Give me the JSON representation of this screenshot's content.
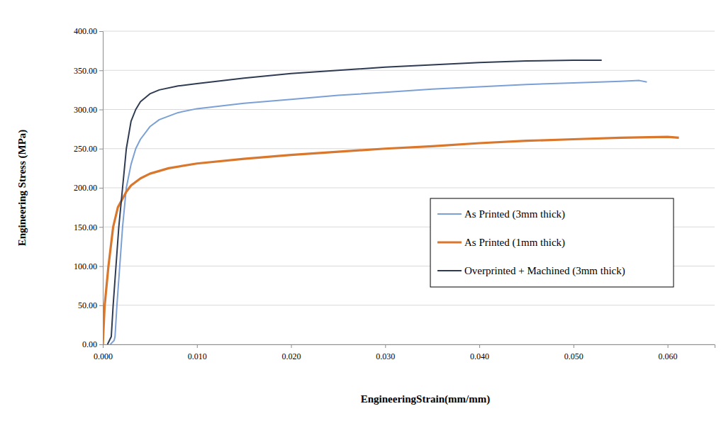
{
  "chart_data": {
    "type": "line",
    "x_label": "EngineeringStrain(mm/mm)",
    "y_label": "Engineering Stress (MPa)",
    "xlim": [
      0,
      0.065
    ],
    "ylim": [
      0,
      400
    ],
    "xticks": [
      {
        "value": 0,
        "label": "0.000"
      },
      {
        "value": 0.01,
        "label": "0.010"
      },
      {
        "value": 0.02,
        "label": "0.020"
      },
      {
        "value": 0.03,
        "label": "0.030"
      },
      {
        "value": 0.04,
        "label": "0.040"
      },
      {
        "value": 0.05,
        "label": "0.050"
      },
      {
        "value": 0.06,
        "label": "0.060"
      }
    ],
    "yticks": [
      {
        "value": 0,
        "label": "0.00"
      },
      {
        "value": 50,
        "label": "50.00"
      },
      {
        "value": 100,
        "label": "100.00"
      },
      {
        "value": 150,
        "label": "150.00"
      },
      {
        "value": 200,
        "label": "200.00"
      },
      {
        "value": 250,
        "label": "250.00"
      },
      {
        "value": 300,
        "label": "300.00"
      },
      {
        "value": 350,
        "label": "350.00"
      },
      {
        "value": 400,
        "label": "400.00"
      }
    ],
    "grid": true,
    "legend": "right",
    "series": [
      {
        "name": "As Printed (3mm thick)",
        "color": "#7ba0d6",
        "x": [
          0.0008,
          0.0012,
          0.0013,
          0.0015,
          0.0018,
          0.0021,
          0.0025,
          0.003,
          0.0035,
          0.004,
          0.005,
          0.006,
          0.008,
          0.01,
          0.015,
          0.02,
          0.025,
          0.03,
          0.035,
          0.04,
          0.045,
          0.05,
          0.055,
          0.057,
          0.0578
        ],
        "values": [
          0,
          5,
          10,
          50,
          100,
          150,
          200,
          230,
          250,
          262,
          278,
          287,
          296,
          301,
          308,
          313,
          318,
          322,
          326,
          329,
          332,
          334,
          336,
          337,
          335
        ]
      },
      {
        "name": "As Printed (1mm thick)",
        "color": "#d9782d",
        "x": [
          0,
          0.0002,
          0.0006,
          0.0011,
          0.0016,
          0.0025,
          0.003,
          0.004,
          0.005,
          0.007,
          0.01,
          0.015,
          0.02,
          0.025,
          0.03,
          0.035,
          0.04,
          0.045,
          0.05,
          0.055,
          0.06,
          0.0612
        ],
        "values": [
          0,
          50,
          100,
          150,
          175,
          195,
          203,
          212,
          218,
          225,
          231,
          237,
          242,
          246,
          250,
          253,
          257,
          260,
          262,
          264,
          265,
          264
        ]
      },
      {
        "name": "Overprinted + Machined (3mm thick)",
        "color": "#2f3b52",
        "x": [
          0.0005,
          0.0009,
          0.0011,
          0.0014,
          0.0017,
          0.0021,
          0.0025,
          0.003,
          0.0035,
          0.004,
          0.005,
          0.006,
          0.008,
          0.01,
          0.015,
          0.02,
          0.025,
          0.03,
          0.035,
          0.04,
          0.045,
          0.05,
          0.053
        ],
        "values": [
          0,
          10,
          50,
          100,
          150,
          200,
          250,
          285,
          300,
          310,
          320,
          325,
          330,
          333,
          340,
          346,
          350,
          354,
          357,
          360,
          362,
          363,
          363
        ]
      }
    ]
  }
}
